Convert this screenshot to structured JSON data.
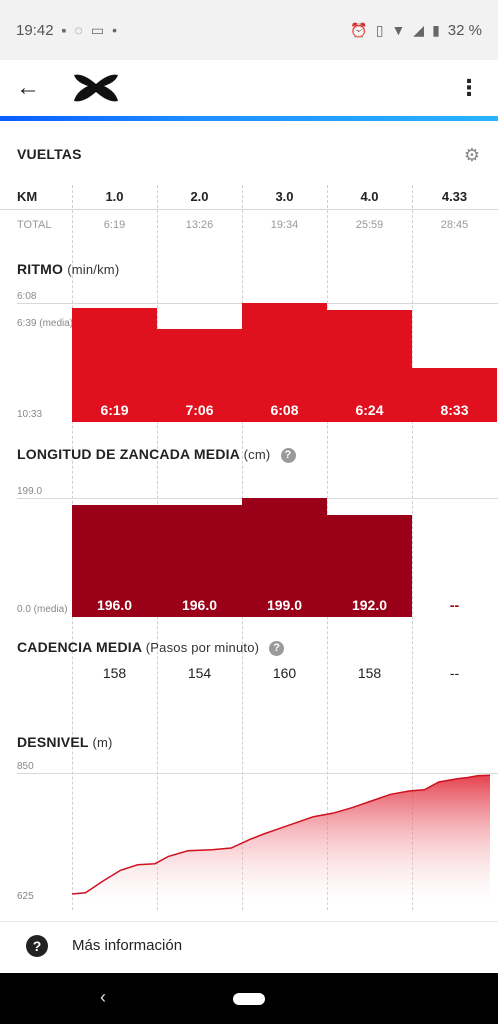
{
  "status_bar": {
    "time": "19:42",
    "battery": "32 %"
  },
  "header": {
    "back_icon": "arrow-left-icon",
    "logo": "under-armour-logo",
    "menu_icon": "more-vert-icon"
  },
  "laps": {
    "title": "VUELTAS",
    "km_label": "KM",
    "total_label": "TOTAL",
    "km": [
      "1.0",
      "2.0",
      "3.0",
      "4.0",
      "4.33"
    ],
    "total": [
      "6:19",
      "13:26",
      "19:34",
      "25:59",
      "28:45"
    ]
  },
  "pace": {
    "title": "RITMO",
    "unit": "(min/km)",
    "axis_top": "6:08",
    "axis_avg": "6:39 (media)",
    "axis_bottom": "10:33",
    "labels": [
      "6:19",
      "7:06",
      "6:08",
      "6:24",
      "8:33"
    ]
  },
  "stride": {
    "title": "LONGITUD DE ZANCADA MEDIA",
    "unit": "(cm)",
    "axis_top": "199.0",
    "axis_bottom": "0.0 (media)",
    "values": [
      "196.0",
      "196.0",
      "199.0",
      "192.0",
      "--"
    ]
  },
  "cadence": {
    "title": "CADENCIA MEDIA",
    "unit": "(Pasos por minuto)",
    "values": [
      "158",
      "154",
      "160",
      "158",
      "--"
    ]
  },
  "elevation": {
    "title": "DESNIVEL",
    "unit": "(m)",
    "axis_top": "850",
    "axis_bottom": "625"
  },
  "chart_data": [
    {
      "type": "bar",
      "title": "RITMO",
      "ylabel": "min/km",
      "categories": [
        "1.0",
        "2.0",
        "3.0",
        "4.0",
        "4.33"
      ],
      "values_seconds_per_km": [
        379,
        426,
        368,
        384,
        513
      ],
      "labels": [
        "6:19",
        "7:06",
        "6:08",
        "6:24",
        "8:33"
      ],
      "ylim_seconds": [
        633,
        368
      ],
      "average_seconds": 399
    },
    {
      "type": "bar",
      "title": "LONGITUD DE ZANCADA MEDIA",
      "ylabel": "cm",
      "categories": [
        "1.0",
        "2.0",
        "3.0",
        "4.0",
        "4.33"
      ],
      "values": [
        196.0,
        196.0,
        199.0,
        192.0,
        null
      ],
      "ylim": [
        0,
        199.0
      ]
    },
    {
      "type": "area",
      "title": "DESNIVEL",
      "ylabel": "m",
      "ylim": [
        625,
        850
      ],
      "x": [
        0.0,
        0.14,
        0.32,
        0.5,
        0.68,
        0.86,
        1.0,
        1.2,
        1.45,
        1.65,
        1.85,
        2.0,
        2.15,
        2.3,
        2.5,
        2.7,
        2.9,
        3.1,
        3.3,
        3.5,
        3.65,
        3.8,
        4.0,
        4.1,
        4.2,
        4.33
      ],
      "values": [
        634,
        636,
        657,
        676,
        686,
        688,
        701,
        711,
        713,
        716,
        732,
        742,
        751,
        760,
        772,
        778,
        788,
        800,
        812,
        818,
        820,
        834,
        840,
        842,
        845,
        846
      ]
    }
  ]
}
